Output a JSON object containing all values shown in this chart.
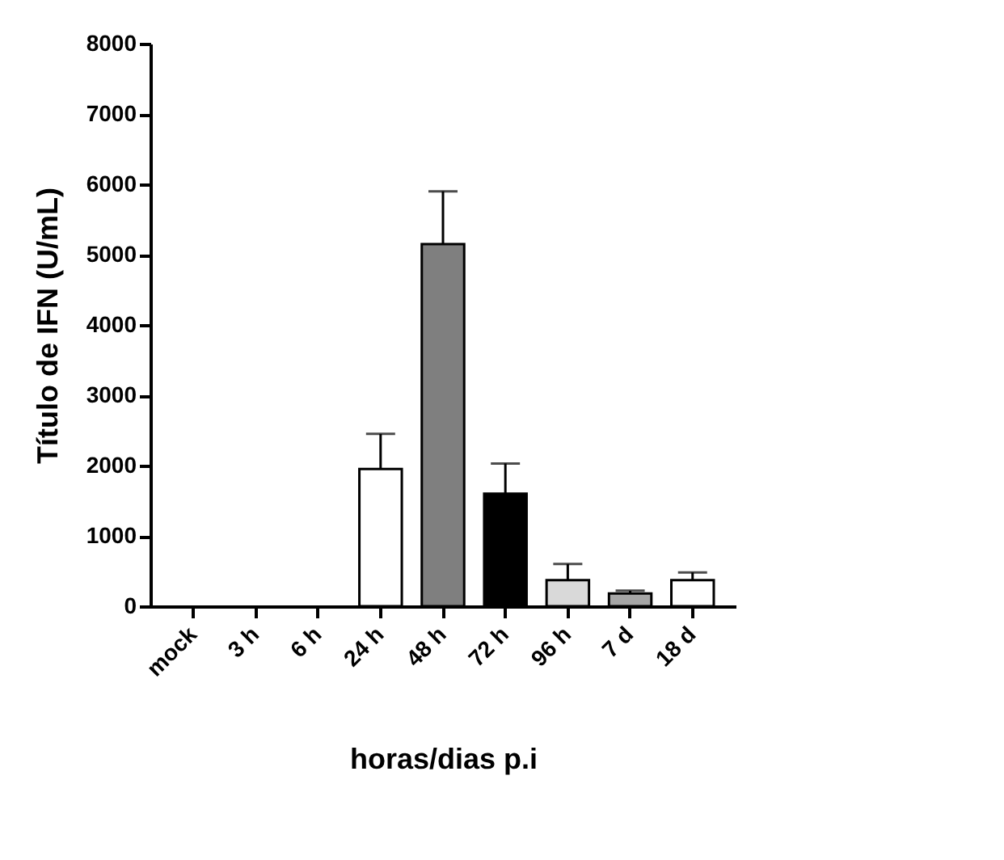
{
  "chart_data": {
    "type": "bar",
    "xlabel": "horas/dias p.i",
    "ylabel": "Título de IFN (U/mL)",
    "categories": [
      "mock",
      "3 h",
      "6 h",
      "24 h",
      "48 h",
      "72 h",
      "96 h",
      "7 d",
      "18 d"
    ],
    "values": [
      0,
      0,
      0,
      1950,
      5150,
      1600,
      370,
      180,
      370
    ],
    "errors": [
      null,
      null,
      null,
      [
        1950,
        2450
      ],
      [
        5150,
        5900
      ],
      [
        1600,
        2030
      ],
      [
        370,
        600
      ],
      [
        180,
        220
      ],
      [
        370,
        480
      ]
    ],
    "colors": [
      "#ffffff",
      "#ffffff",
      "#ffffff",
      "#ffffff",
      "#7f7f7f",
      "#000000",
      "#d9d9d9",
      "#a6a6a6",
      "#ffffff"
    ],
    "ylim": [
      0,
      8000
    ],
    "yticks": [
      0,
      1000,
      2000,
      3000,
      4000,
      5000,
      6000,
      7000,
      8000
    ],
    "grid": false,
    "legend": false
  }
}
